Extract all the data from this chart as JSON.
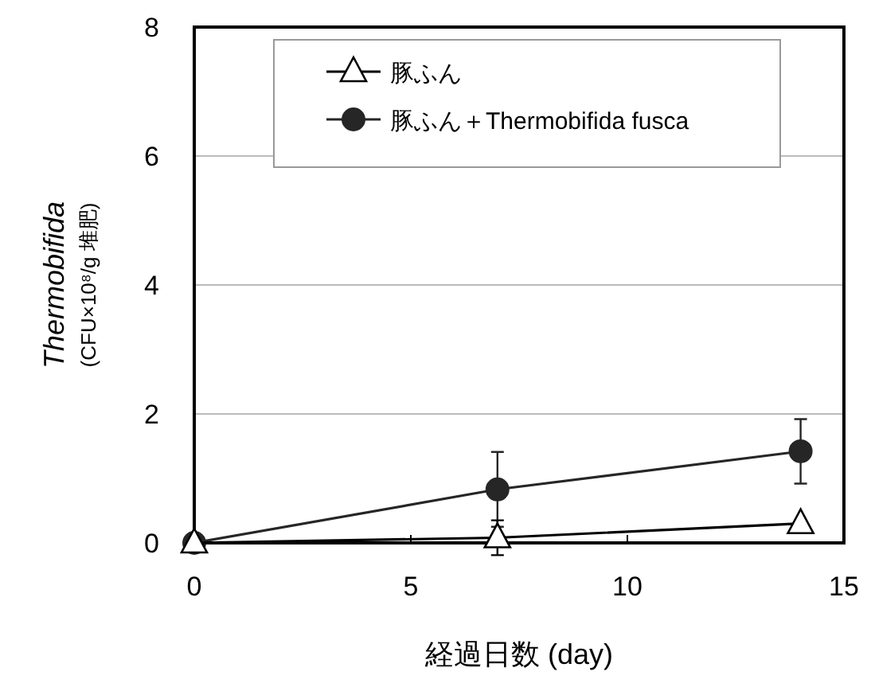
{
  "chart_data": {
    "type": "line",
    "xlabel": "経過日数 (day)",
    "ylabel": "Thermobifida\n(CFU×10⁸/g 堆肥)",
    "x": [
      0,
      7,
      14
    ],
    "series": [
      {
        "name": "豚ふん",
        "color": "#000000",
        "marker": "triangle",
        "values": [
          0,
          0.08,
          0.3
        ],
        "errors": [
          null,
          0.27,
          null
        ]
      },
      {
        "name": "豚ふん＋Thermobifida fusca",
        "color": "#262626",
        "marker": "circle",
        "values": [
          0,
          0.83,
          1.42
        ],
        "errors": [
          null,
          0.58,
          0.5
        ]
      }
    ],
    "xlim": [
      0,
      15
    ],
    "xticks": [
      0,
      5,
      10,
      15
    ],
    "ylim": [
      0,
      8
    ],
    "yticks": [
      0,
      2,
      4,
      6,
      8
    ],
    "grid": "y",
    "legend": "top",
    "line_style": "solid"
  }
}
